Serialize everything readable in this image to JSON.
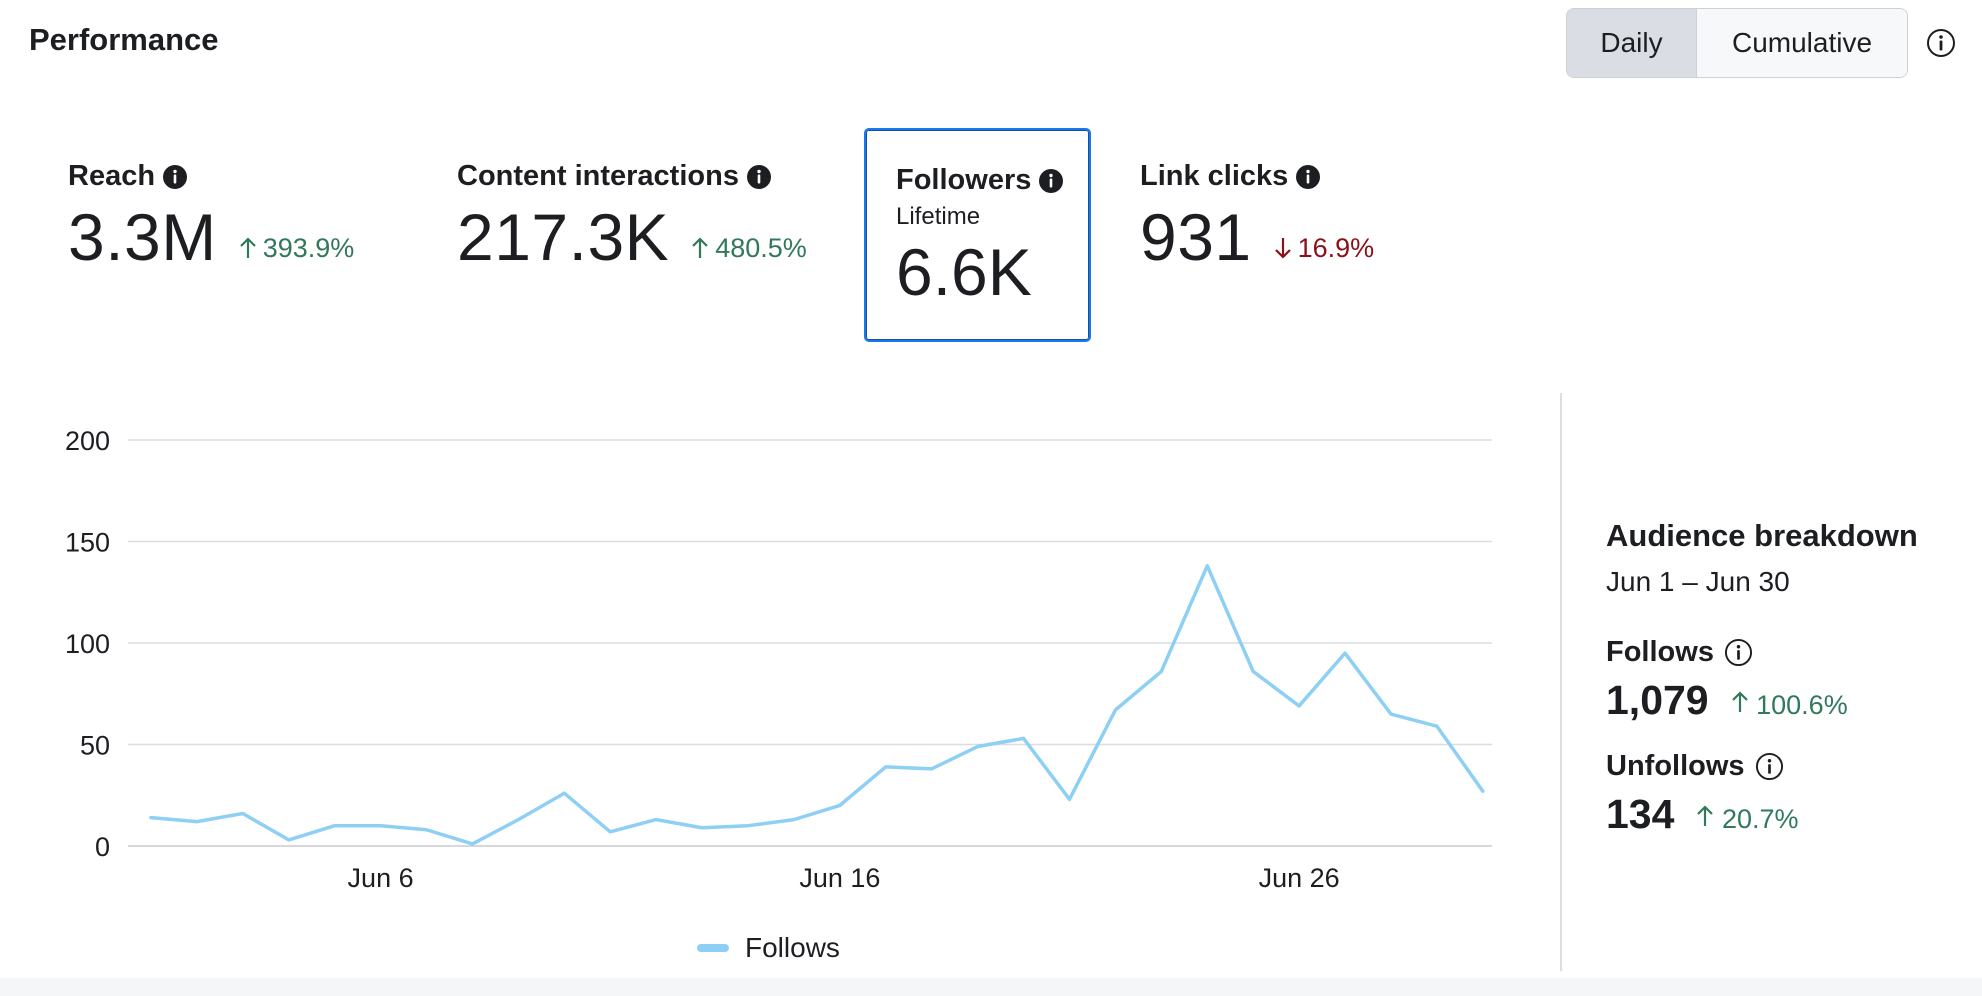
{
  "header": {
    "title": "Performance",
    "toggle": {
      "daily_label": "Daily",
      "cumulative_label": "Cumulative",
      "selected": "Daily"
    }
  },
  "metrics": {
    "reach": {
      "label": "Reach",
      "value": "3.3M",
      "delta": "393.9%",
      "direction": "up"
    },
    "content_interactions": {
      "label": "Content interactions",
      "value": "217.3K",
      "delta": "480.5%",
      "direction": "up"
    },
    "followers": {
      "label": "Followers",
      "sublabel": "Lifetime",
      "value": "6.6K"
    },
    "link_clicks": {
      "label": "Link clicks",
      "value": "931",
      "delta": "16.9%",
      "direction": "down"
    }
  },
  "chart_data": {
    "type": "line",
    "title": "",
    "xlabel": "",
    "ylabel": "",
    "x": [
      1,
      2,
      3,
      4,
      5,
      6,
      7,
      8,
      9,
      10,
      11,
      12,
      13,
      14,
      15,
      16,
      17,
      18,
      19,
      20,
      21,
      22,
      23,
      24,
      25,
      26,
      27,
      28,
      29,
      30
    ],
    "series": [
      {
        "name": "Follows",
        "color": "#8ecff4",
        "values": [
          14,
          12,
          16,
          3,
          10,
          10,
          8,
          1,
          13,
          26,
          7,
          13,
          9,
          10,
          13,
          20,
          39,
          38,
          49,
          53,
          23,
          67,
          86,
          138,
          86,
          69,
          95,
          65,
          59,
          27
        ]
      }
    ],
    "yticks": [
      0,
      50,
      100,
      150,
      200
    ],
    "ytick_labels": [
      "0",
      "50",
      "100",
      "150",
      "200"
    ],
    "xticks": [
      6,
      16,
      26
    ],
    "xtick_labels": [
      "Jun 6",
      "Jun 16",
      "Jun 26"
    ],
    "ylim": [
      0,
      200
    ],
    "xlim": [
      0.5,
      30.2
    ],
    "grid": true,
    "legend": "bottom-center"
  },
  "audience": {
    "title": "Audience breakdown",
    "range": "Jun 1 – Jun 30",
    "follows": {
      "label": "Follows",
      "value": "1,079",
      "delta": "100.6%",
      "direction": "up"
    },
    "unfollows": {
      "label": "Unfollows",
      "value": "134",
      "delta": "20.7%",
      "direction": "up"
    }
  },
  "colors": {
    "up": "#31795b",
    "down": "#8a1019",
    "accent": "#1877f2",
    "line": "#8ecff4"
  },
  "icons": {
    "info": "info-icon",
    "arrow_up": "arrow-up-icon",
    "arrow_down": "arrow-down-icon"
  }
}
